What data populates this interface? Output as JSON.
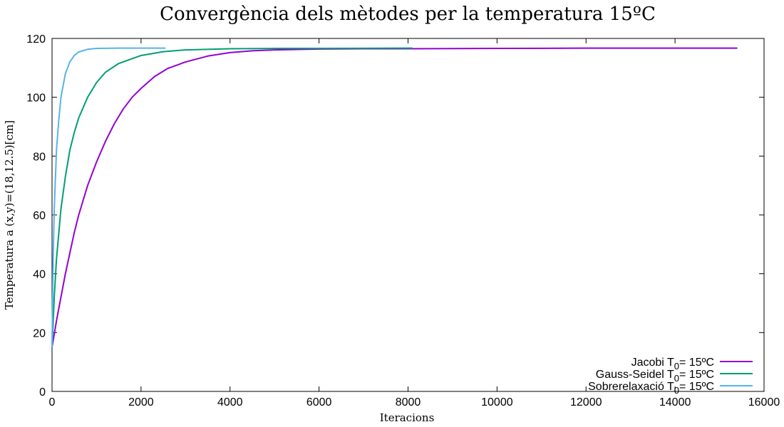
{
  "chart_data": {
    "type": "line",
    "title": "Convergència dels mètodes per la temperatura 15ºC",
    "xlabel": "Iteracions",
    "ylabel": "Temperatura a (x,y)=(18,12.5)[cm]",
    "xlim": [
      0,
      16000
    ],
    "ylim": [
      0,
      120
    ],
    "xticks": [
      0,
      2000,
      4000,
      6000,
      8000,
      10000,
      12000,
      14000,
      16000
    ],
    "yticks": [
      0,
      20,
      40,
      60,
      80,
      100,
      120
    ],
    "grid": false,
    "legend_position": "bottom-right",
    "series": [
      {
        "name_prefix": "Jacobi T",
        "name_sub": "0",
        "name_suffix": "= 15ºC",
        "color": "#9400d3",
        "points": [
          [
            0,
            15
          ],
          [
            100,
            24
          ],
          [
            200,
            32
          ],
          [
            300,
            40
          ],
          [
            400,
            47
          ],
          [
            500,
            54
          ],
          [
            600,
            60
          ],
          [
            800,
            70
          ],
          [
            1000,
            78
          ],
          [
            1200,
            85
          ],
          [
            1400,
            91
          ],
          [
            1600,
            96
          ],
          [
            1800,
            100
          ],
          [
            2000,
            103
          ],
          [
            2300,
            107
          ],
          [
            2600,
            109.8
          ],
          [
            3000,
            112
          ],
          [
            3500,
            114
          ],
          [
            4000,
            115.2
          ],
          [
            4500,
            115.8
          ],
          [
            5000,
            116.1
          ],
          [
            6000,
            116.4
          ],
          [
            7000,
            116.5
          ],
          [
            8000,
            116.5
          ],
          [
            10000,
            116.6
          ],
          [
            12000,
            116.7
          ],
          [
            14000,
            116.7
          ],
          [
            15400,
            116.7
          ]
        ]
      },
      {
        "name_prefix": "Gauss-Seidel T",
        "name_sub": "0",
        "name_suffix": "= 15ºC",
        "color": "#009e73",
        "points": [
          [
            0,
            15
          ],
          [
            50,
            32
          ],
          [
            100,
            45
          ],
          [
            200,
            62
          ],
          [
            300,
            73
          ],
          [
            400,
            82
          ],
          [
            500,
            88
          ],
          [
            600,
            93
          ],
          [
            800,
            100
          ],
          [
            1000,
            105
          ],
          [
            1200,
            108.5
          ],
          [
            1500,
            111.5
          ],
          [
            2000,
            114.2
          ],
          [
            2500,
            115.5
          ],
          [
            3000,
            116.1
          ],
          [
            4000,
            116.5
          ],
          [
            5000,
            116.6
          ],
          [
            6000,
            116.6
          ],
          [
            8100,
            116.7
          ]
        ]
      },
      {
        "name_prefix": "Sobrerelaxació T",
        "name_sub": "0",
        "name_suffix": "= 15ºC",
        "color": "#56b4e9",
        "points": [
          [
            0,
            15
          ],
          [
            25,
            45
          ],
          [
            50,
            62
          ],
          [
            100,
            82
          ],
          [
            150,
            92
          ],
          [
            200,
            100
          ],
          [
            300,
            108
          ],
          [
            400,
            112
          ],
          [
            500,
            114.2
          ],
          [
            600,
            115.4
          ],
          [
            800,
            116.3
          ],
          [
            1000,
            116.6
          ],
          [
            1500,
            116.7
          ],
          [
            2550,
            116.7
          ]
        ]
      }
    ]
  }
}
